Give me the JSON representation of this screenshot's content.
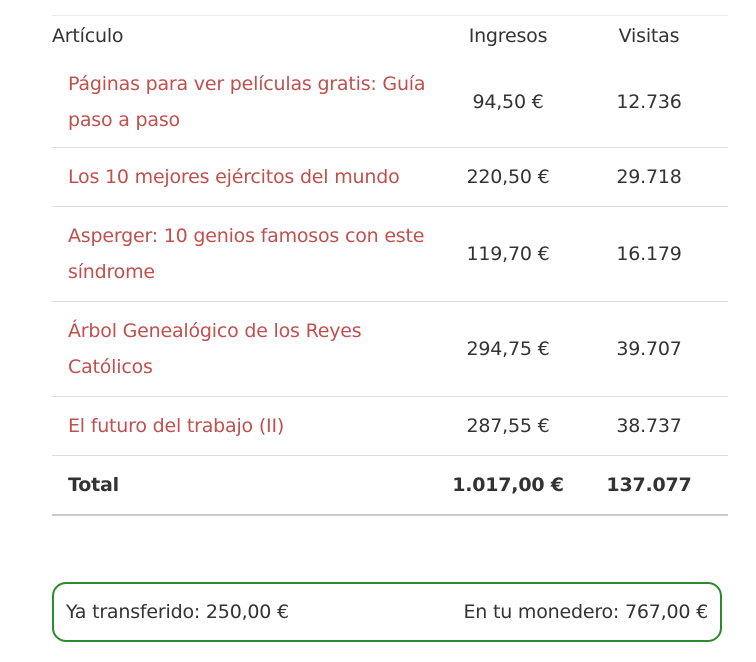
{
  "table": {
    "headers": {
      "article": "Artículo",
      "income": "Ingresos",
      "visits": "Visitas"
    },
    "rows": [
      {
        "article": "Páginas para ver películas gratis: Guía paso a paso",
        "income": "94,50 €",
        "visits": "12.736"
      },
      {
        "article": "Los 10 mejores ejércitos del mundo",
        "income": "220,50 €",
        "visits": "29.718"
      },
      {
        "article": "Asperger: 10 genios famosos con este síndrome",
        "income": "119,70 €",
        "visits": "16.179"
      },
      {
        "article": "Árbol Genealógico de los Reyes Católicos",
        "income": "294,75 €",
        "visits": "39.707"
      },
      {
        "article": "El futuro del trabajo (II)",
        "income": "287,55 €",
        "visits": "38.737"
      }
    ],
    "total": {
      "label": "Total",
      "income": "1.017,00 €",
      "visits": "137.077"
    }
  },
  "wallet": {
    "transferred": "Ya transferido: 250,00 €",
    "balance": "En tu monedero: 767,00 €"
  },
  "colors": {
    "link": "#c0504d",
    "box_border": "#2d8a2d",
    "text": "#333333"
  }
}
